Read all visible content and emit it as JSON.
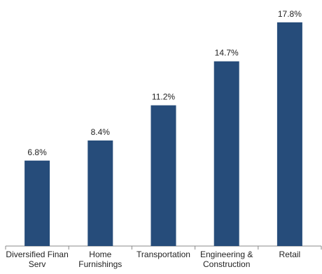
{
  "chart_data": {
    "type": "bar",
    "categories": [
      "Diversified Finan Serv",
      "Home Furnishings",
      "Transportation",
      "Engineering & Construction",
      "Retail"
    ],
    "values": [
      6.8,
      8.4,
      11.2,
      14.7,
      17.8
    ],
    "value_labels": [
      "6.8%",
      "8.4%",
      "11.2%",
      "14.7%",
      "17.8%"
    ],
    "color": "#264c7a"
  }
}
